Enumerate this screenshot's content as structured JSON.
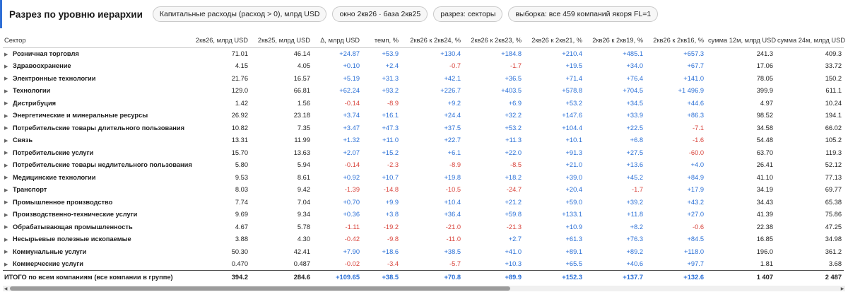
{
  "header": {
    "title": "Разрез по уровню иерархии",
    "chips": [
      "Капитальные расходы (расход > 0), млрд USD",
      "окно 2кв26 · база 2кв25",
      "разрез: секторы",
      "выборка: все 459 компаний якоря FL=1"
    ]
  },
  "table": {
    "columns": [
      "Сектор",
      "2кв26, млрд USD",
      "2кв25, млрд USD",
      "Δ, млрд USD",
      "темп, %",
      "2кв26 к 2кв24, %",
      "2кв26 к 2кв23, %",
      "2кв26 к 2кв21, %",
      "2кв26 к 2кв19, %",
      "2кв26 к 2кв16, %",
      "сумма 12м, млрд USD",
      "сумма 24м, млрд USD"
    ],
    "rows": [
      [
        "Розничная торговля",
        "71.01",
        "46.14",
        "+24.87",
        "+53.9",
        "+130.4",
        "+184.8",
        "+210.4",
        "+485.1",
        "+657.3",
        "241.3",
        "409.3"
      ],
      [
        "Здравоохранение",
        "4.15",
        "4.05",
        "+0.10",
        "+2.4",
        "-0.7",
        "-1.7",
        "+19.5",
        "+34.0",
        "+67.7",
        "17.06",
        "33.72"
      ],
      [
        "Электронные технологии",
        "21.76",
        "16.57",
        "+5.19",
        "+31.3",
        "+42.1",
        "+36.5",
        "+71.4",
        "+76.4",
        "+141.0",
        "78.05",
        "150.2"
      ],
      [
        "Технологии",
        "129.0",
        "66.81",
        "+62.24",
        "+93.2",
        "+226.7",
        "+403.5",
        "+578.8",
        "+704.5",
        "+1 496.9",
        "399.9",
        "611.1"
      ],
      [
        "Дистрибуция",
        "1.42",
        "1.56",
        "-0.14",
        "-8.9",
        "+9.2",
        "+6.9",
        "+53.2",
        "+34.5",
        "+44.6",
        "4.97",
        "10.24"
      ],
      [
        "Энергетические и минеральные ресурсы",
        "26.92",
        "23.18",
        "+3.74",
        "+16.1",
        "+24.4",
        "+32.2",
        "+147.6",
        "+33.9",
        "+86.3",
        "98.52",
        "194.1"
      ],
      [
        "Потребительские товары длительного пользования",
        "10.82",
        "7.35",
        "+3.47",
        "+47.3",
        "+37.5",
        "+53.2",
        "+104.4",
        "+22.5",
        "-7.1",
        "34.58",
        "66.02"
      ],
      [
        "Связь",
        "13.31",
        "11.99",
        "+1.32",
        "+11.0",
        "+22.7",
        "+11.3",
        "+10.1",
        "+6.8",
        "-1.6",
        "54.48",
        "105.2"
      ],
      [
        "Потребительские услуги",
        "15.70",
        "13.63",
        "+2.07",
        "+15.2",
        "+6.1",
        "+22.0",
        "+91.3",
        "+27.5",
        "-60.0",
        "63.70",
        "119.3"
      ],
      [
        "Потребительские товары недлительного пользования",
        "5.80",
        "5.94",
        "-0.14",
        "-2.3",
        "-8.9",
        "-8.5",
        "+21.0",
        "+13.6",
        "+4.0",
        "26.41",
        "52.12"
      ],
      [
        "Медицинские технологии",
        "9.53",
        "8.61",
        "+0.92",
        "+10.7",
        "+19.8",
        "+18.2",
        "+39.0",
        "+45.2",
        "+84.9",
        "41.10",
        "77.13"
      ],
      [
        "Транспорт",
        "8.03",
        "9.42",
        "-1.39",
        "-14.8",
        "-10.5",
        "-24.7",
        "+20.4",
        "-1.7",
        "+17.9",
        "34.19",
        "69.77"
      ],
      [
        "Промышленное производство",
        "7.74",
        "7.04",
        "+0.70",
        "+9.9",
        "+10.4",
        "+21.2",
        "+59.0",
        "+39.2",
        "+43.2",
        "34.43",
        "65.38"
      ],
      [
        "Производственно-технические услуги",
        "9.69",
        "9.34",
        "+0.36",
        "+3.8",
        "+36.4",
        "+59.8",
        "+133.1",
        "+11.8",
        "+27.0",
        "41.39",
        "75.86"
      ],
      [
        "Обрабатывающая промышленность",
        "4.67",
        "5.78",
        "-1.11",
        "-19.2",
        "-21.0",
        "-21.3",
        "+10.9",
        "+8.2",
        "-0.6",
        "22.38",
        "47.25"
      ],
      [
        "Несырьевые полезные ископаемые",
        "3.88",
        "4.30",
        "-0.42",
        "-9.8",
        "-11.0",
        "+2.7",
        "+61.3",
        "+76.3",
        "+84.5",
        "16.85",
        "34.98"
      ],
      [
        "Коммунальные услуги",
        "50.30",
        "42.41",
        "+7.90",
        "+18.6",
        "+38.5",
        "+41.0",
        "+89.1",
        "+89.2",
        "+118.0",
        "196.0",
        "361.2"
      ],
      [
        "Коммерческие услуги",
        "0.470",
        "0.487",
        "-0.02",
        "-3.4",
        "-5.7",
        "+10.3",
        "+65.5",
        "+40.6",
        "+97.7",
        "1.81",
        "3.68"
      ]
    ],
    "total": [
      "ИТОГО по всем компаниям (все компании в группе)",
      "394.2",
      "284.6",
      "+109.65",
      "+38.5",
      "+70.8",
      "+89.9",
      "+152.3",
      "+137.7",
      "+132.6",
      "1 407",
      "2 487"
    ]
  },
  "colors": {
    "accent": "#2f6fd6",
    "positive": "#2a6fd6",
    "negative": "#d8443c"
  },
  "icons": {
    "row_expand": "triangle-right-icon",
    "scroll_left": "arrow-left-icon",
    "scroll_right": "arrow-right-icon"
  }
}
